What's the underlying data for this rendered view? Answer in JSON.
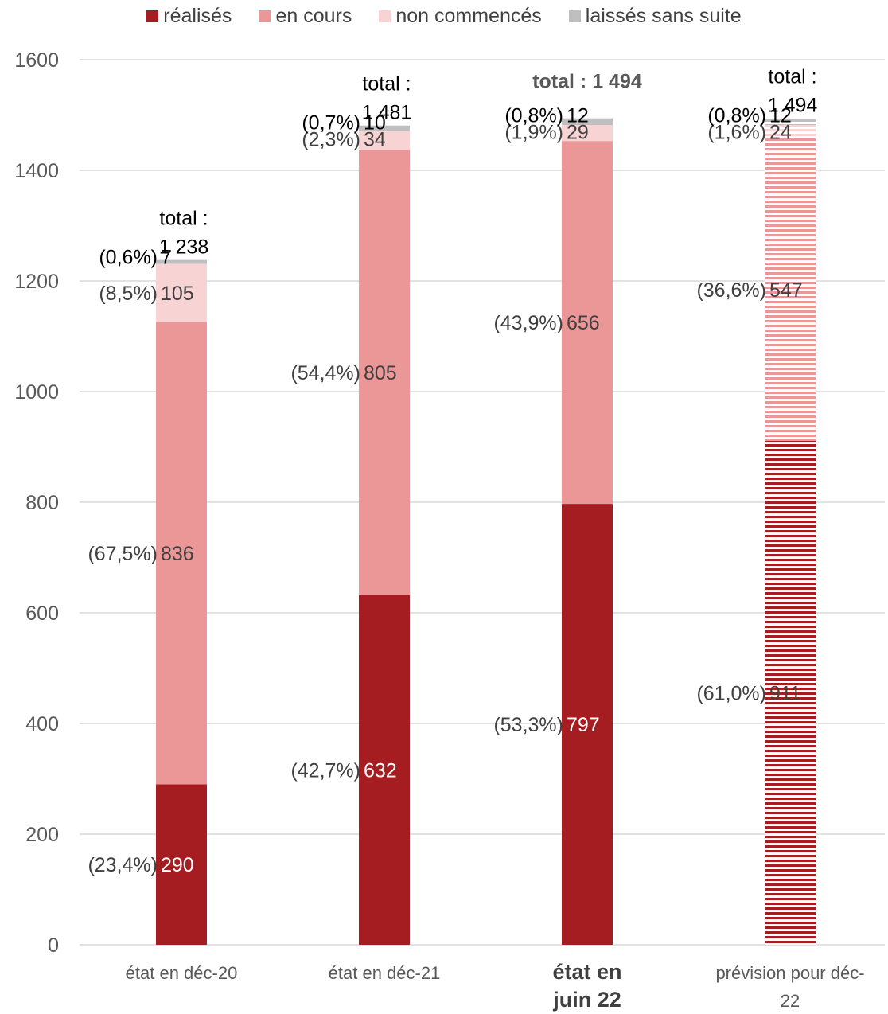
{
  "colors": {
    "realises": "#a51c21",
    "en_cours": "#ec9797",
    "non_commences": "#f7d3d3",
    "sans_suite": "#bfbfbf",
    "grid": "#d9d9d9",
    "text": "#404040"
  },
  "chart_data": {
    "type": "bar",
    "stacked": true,
    "categories": [
      "état en déc-20",
      "état en déc-21",
      "état en juin 22",
      "prévision pour déc-22"
    ],
    "series": [
      {
        "name": "réalisés",
        "values": [
          290,
          632,
          797,
          911
        ],
        "percent_labels": [
          "(23,4%)",
          "(42,7%)",
          "(53,3%)",
          "(61,0%)"
        ]
      },
      {
        "name": "en cours",
        "values": [
          836,
          805,
          656,
          547
        ],
        "percent_labels": [
          "(67,5%)",
          "(54,4%)",
          "(43,9%)",
          "(36,6%)"
        ]
      },
      {
        "name": "non commencés",
        "values": [
          105,
          34,
          29,
          24
        ],
        "percent_labels": [
          "(8,5%)",
          "(2,3%)",
          "(1,9%)",
          "(1,6%)"
        ]
      },
      {
        "name": "laissés sans suite",
        "values": [
          7,
          10,
          12,
          12
        ],
        "percent_labels": [
          "(0,6%)",
          "(0,7%)",
          "(0,8%)",
          "(0,8%)"
        ]
      }
    ],
    "totals": [
      "total : 1 238",
      "total : 1 481",
      "total : 1 494",
      "total : 1 494"
    ],
    "highlight_category": "état en juin 22",
    "forecast_category": "prévision pour déc-22",
    "forecast_fill": "hatched",
    "ylim": [
      0,
      1600
    ],
    "yticks": [
      0,
      200,
      400,
      600,
      800,
      1000,
      1200,
      1400,
      1600
    ],
    "grid": true,
    "legend_position": "top"
  }
}
